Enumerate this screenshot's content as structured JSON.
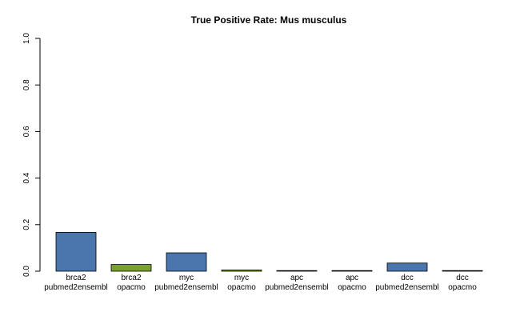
{
  "chart_data": {
    "type": "bar",
    "title": "True Positive Rate: Mus musculus",
    "xlabel": "",
    "ylabel": "",
    "ylim": [
      0,
      1
    ],
    "yticks": [
      "0.0",
      "0.2",
      "0.4",
      "0.6",
      "0.8",
      "1.0"
    ],
    "grid": false,
    "categories": [
      [
        "brca2",
        "pubmed2ensembl"
      ],
      [
        "brca2",
        "opacmo"
      ],
      [
        "myc",
        "pubmed2ensembl"
      ],
      [
        "myc",
        "opacmo"
      ],
      [
        "apc",
        "pubmed2ensembl"
      ],
      [
        "apc",
        "opacmo"
      ],
      [
        "dcc",
        "pubmed2ensembl"
      ],
      [
        "dcc",
        "opacmo"
      ]
    ],
    "values": [
      0.167,
      0.029,
      0.079,
      0.005,
      0.002,
      0.001,
      0.035,
      0.001
    ],
    "colors": [
      "#4a75ad",
      "#7aa12e",
      "#4a75ad",
      "#7aa12e",
      "#4a75ad",
      "#7aa12e",
      "#4a75ad",
      "#7aa12e"
    ]
  }
}
